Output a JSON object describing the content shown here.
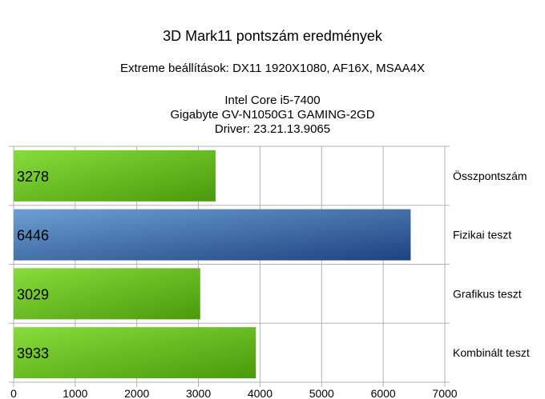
{
  "chart_data": {
    "type": "bar",
    "orientation": "horizontal",
    "title": "3D Mark11 pontszám eredmények",
    "subtitle": "Extreme beállítások: DX11 1920X1080, AF16X, MSAA4X",
    "info_lines": [
      "Intel Core i5-7400",
      "Gigabyte GV-N1050G1 GAMING-2GD",
      "Driver: 23.21.13.9065"
    ],
    "categories": [
      "Összpontszám",
      "Fizikai teszt",
      "Grafikus teszt",
      "Kombinált teszt"
    ],
    "values": [
      3278,
      6446,
      3029,
      3933
    ],
    "data_labels": [
      "3278",
      "6446",
      "3029",
      "3933"
    ],
    "bar_colors": [
      "green",
      "blue",
      "green",
      "green"
    ],
    "xlim": [
      0,
      7000
    ],
    "xticks": [
      0,
      1000,
      2000,
      3000,
      4000,
      5000,
      6000,
      7000
    ],
    "xtick_labels": [
      "0",
      "1000",
      "2000",
      "3000",
      "4000",
      "5000",
      "6000",
      "7000"
    ],
    "grid": true,
    "category_label_position": "right"
  },
  "colors": {
    "green_light": "#86dd3a",
    "green_dark": "#4a9a0c",
    "blue_light": "#6d9fd4",
    "blue_dark": "#1e4280",
    "grid": "#b3b3b3",
    "axis": "#b3b3b3"
  }
}
